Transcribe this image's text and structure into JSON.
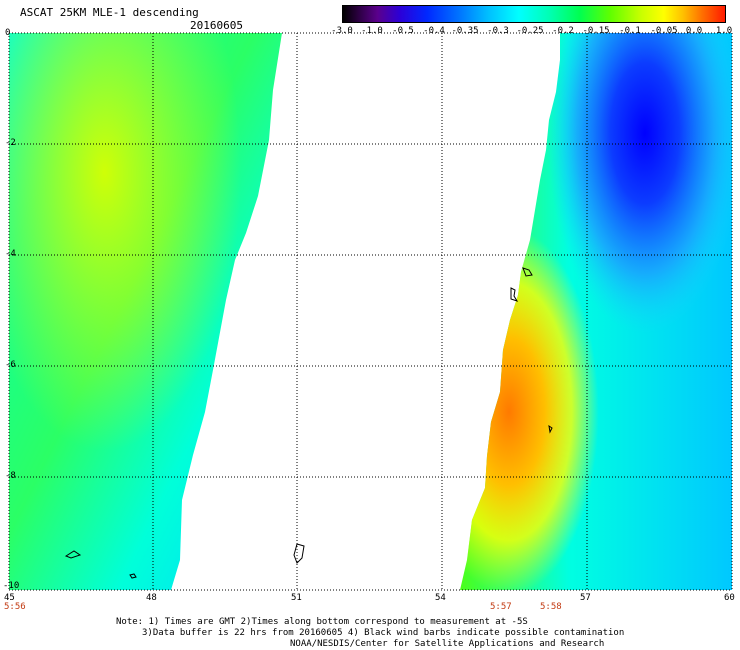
{
  "header": {
    "title": "ASCAT 25KM MLE-1 descending",
    "date": "20160605"
  },
  "colorbar": {
    "labels": [
      "-3.0",
      "-1.0",
      "-0.5",
      "-0.4",
      "-0.35",
      "-0.3",
      "-0.25",
      "-0.2",
      "-0.15",
      "-0.1",
      "-0.05",
      "0.0",
      "1.0"
    ],
    "colors": [
      "#000000",
      "#5a008c",
      "#0028ff",
      "#00bfff",
      "#00ffff",
      "#00ff50",
      "#c8ff00",
      "#ffff00",
      "#ff7000",
      "#ff1a00"
    ]
  },
  "axes": {
    "x_labels": [
      "45",
      "48",
      "51",
      "54",
      "57",
      "60"
    ],
    "y_labels": [
      "0",
      "-2",
      "-4",
      "-6",
      "-8",
      "-10"
    ],
    "lon_range": [
      45,
      60
    ],
    "lat_range": [
      -10,
      0
    ]
  },
  "times": {
    "left": "5:56",
    "mid1": "5:57",
    "mid2": "5:58"
  },
  "notes": {
    "line1": "Note: 1) Times are GMT 2)Times along bottom correspond to measurement at -5S",
    "line2": "3)Data buffer is 22 hrs from 20160605 4) Black wind barbs indicate possible contamination",
    "line3": "NOAA/NESDIS/Center for Satellite Applications and Research"
  }
}
